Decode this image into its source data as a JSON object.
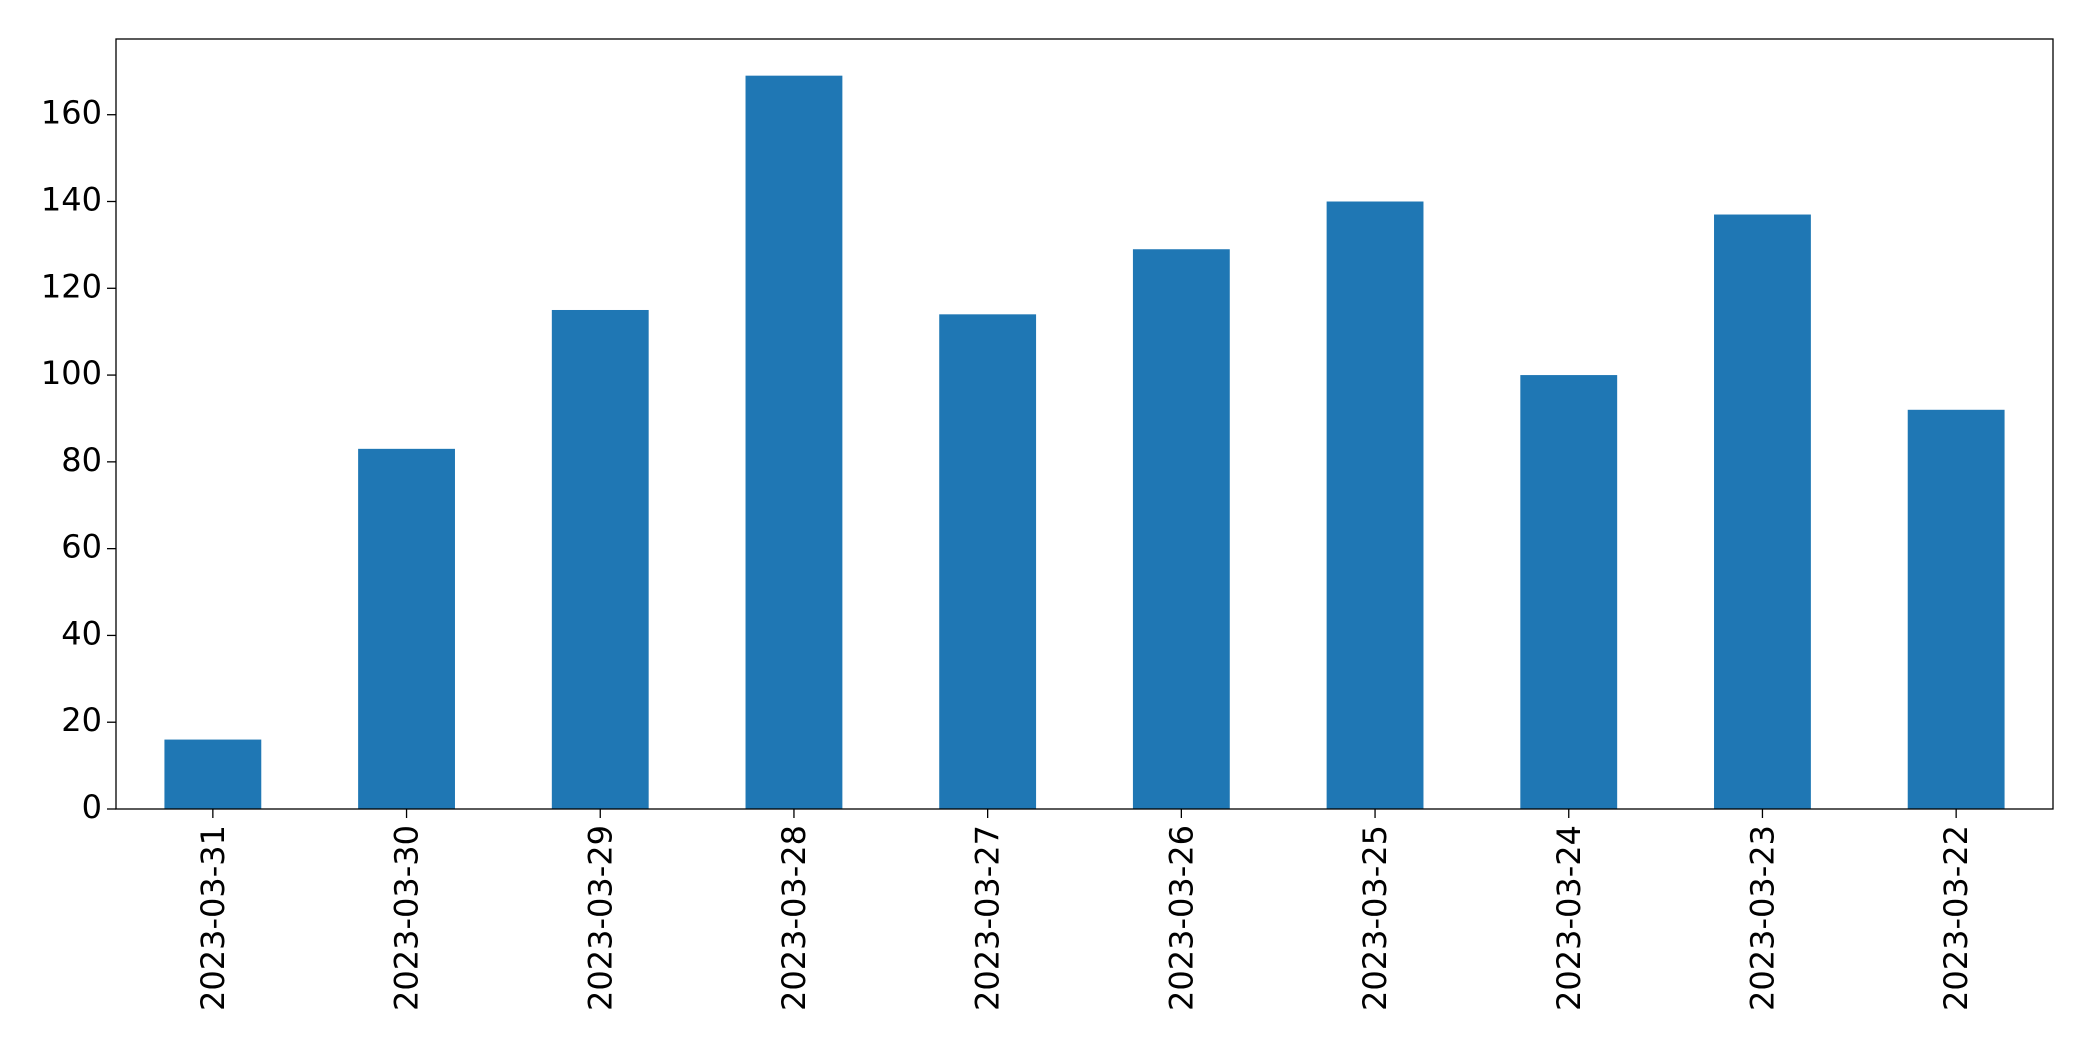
{
  "chart_data": {
    "type": "bar",
    "categories": [
      "2023-03-31",
      "2023-03-30",
      "2023-03-29",
      "2023-03-28",
      "2023-03-27",
      "2023-03-26",
      "2023-03-25",
      "2023-03-24",
      "2023-03-23",
      "2023-03-22"
    ],
    "values": [
      16,
      83,
      115,
      169,
      114,
      129,
      140,
      100,
      137,
      92
    ],
    "color": "#1f77b4",
    "ylim": [
      0,
      177.45
    ],
    "yticks": [
      0,
      20,
      40,
      60,
      80,
      100,
      120,
      140,
      160
    ],
    "grid": false
  }
}
